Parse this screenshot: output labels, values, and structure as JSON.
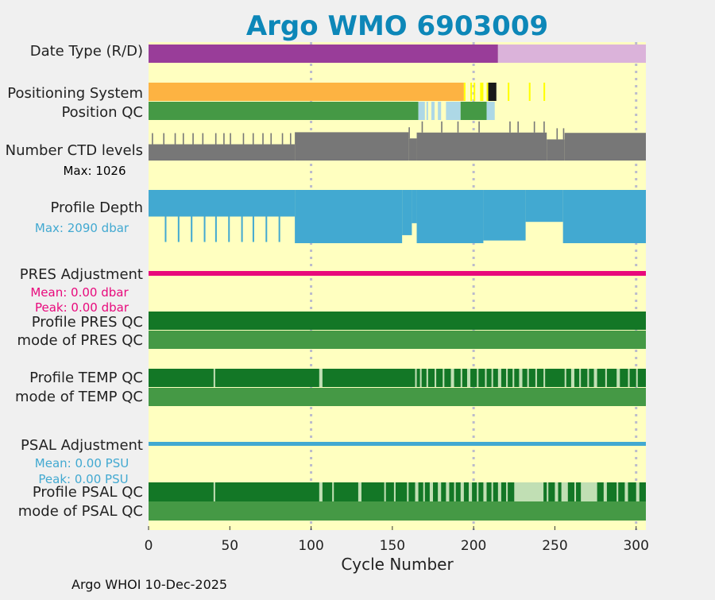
{
  "chart_data": {
    "type": "bar",
    "title": "Argo WMO 6903009",
    "xlabel": "Cycle Number",
    "xlim": [
      0,
      306
    ],
    "xticks": [
      "0",
      "50",
      "100",
      "150",
      "200",
      "250",
      "300"
    ],
    "xtick_values": [
      0,
      50,
      100,
      150,
      200,
      250,
      300
    ],
    "grid_lines_at": [
      100,
      200,
      300
    ],
    "footer": "Argo WHOI 10-Dec-2025",
    "last_cycle": 306,
    "rows": [
      {
        "label": "Date Type (R/D)",
        "segments": [
          {
            "from": 0,
            "to": 215,
            "code": "D"
          },
          {
            "from": 215,
            "to": 306,
            "code": "R"
          }
        ]
      },
      {
        "label": "Positioning System",
        "segments": [
          {
            "from": 0,
            "to": 194,
            "code": "GPS"
          },
          {
            "from": 194,
            "to": 195,
            "code": "Argos"
          },
          {
            "from": 198,
            "to": 199,
            "code": "Argos"
          },
          {
            "from": 200,
            "to": 201,
            "code": "Argos"
          },
          {
            "from": 204,
            "to": 206,
            "code": "Argos"
          },
          {
            "from": 208,
            "to": 209,
            "code": "Argos"
          },
          {
            "from": 209,
            "to": 214,
            "code": "unknown"
          },
          {
            "from": 221,
            "to": 222,
            "code": "Argos"
          },
          {
            "from": 234,
            "to": 235,
            "code": "Argos"
          },
          {
            "from": 243,
            "to": 244,
            "code": "Argos"
          }
        ]
      },
      {
        "label": "Position QC",
        "segments": [
          {
            "from": 0,
            "to": 166,
            "code": "good"
          },
          {
            "from": 166,
            "to": 170,
            "code": "changed"
          },
          {
            "from": 171,
            "to": 172,
            "code": "changed"
          },
          {
            "from": 174,
            "to": 176,
            "code": "changed"
          },
          {
            "from": 178,
            "to": 180,
            "code": "changed"
          },
          {
            "from": 183,
            "to": 192,
            "code": "changed"
          },
          {
            "from": 192,
            "to": 208,
            "code": "good"
          },
          {
            "from": 208,
            "to": 213,
            "code": "changed"
          }
        ]
      },
      {
        "label": "Number CTD levels",
        "stat": "Max: 1026",
        "max": 1026,
        "segments": [
          {
            "from": 0,
            "to": 90,
            "value": 500
          },
          {
            "from": 90,
            "to": 160,
            "value": 870
          },
          {
            "from": 160,
            "to": 165,
            "value": 680
          },
          {
            "from": 165,
            "to": 245,
            "value": 860
          },
          {
            "from": 245,
            "to": 256,
            "value": 650
          },
          {
            "from": 256,
            "to": 306,
            "value": 850
          }
        ],
        "spikes": [
          2,
          9,
          16,
          21,
          27,
          33,
          41,
          46,
          50,
          58,
          64,
          70,
          75,
          82,
          87,
          160,
          168,
          180,
          190,
          203,
          222,
          227,
          237,
          243,
          251,
          255
        ]
      },
      {
        "label": "Profile Depth",
        "stat": "Max: 2090 dbar",
        "max": 2090,
        "segments": [
          {
            "from": 0,
            "to": 90,
            "value": 1000
          },
          {
            "from": 90,
            "to": 156,
            "value": 2000
          },
          {
            "from": 156,
            "to": 162,
            "value": 1700
          },
          {
            "from": 162,
            "to": 165,
            "value": 1250
          },
          {
            "from": 165,
            "to": 206,
            "value": 2000
          },
          {
            "from": 206,
            "to": 232,
            "value": 1900
          },
          {
            "from": 232,
            "to": 255,
            "value": 1200
          },
          {
            "from": 255,
            "to": 306,
            "value": 2000
          }
        ],
        "spikes": [
          10,
          18,
          26,
          34,
          41,
          49,
          57,
          64,
          72,
          80
        ]
      },
      {
        "label": "PRES Adjustment",
        "stats": [
          "Mean: 0.00 dbar",
          "Peak: 0.00 dbar"
        ],
        "mean": 0.0,
        "peak": 0.0
      },
      {
        "label": "Profile PRES QC",
        "segments": [
          {
            "from": 0,
            "to": 306,
            "code": "A"
          }
        ]
      },
      {
        "label": "mode of PRES QC",
        "segments": [
          {
            "from": 0,
            "to": 306,
            "code": "1"
          }
        ]
      },
      {
        "label": "Profile TEMP QC",
        "segments": [
          {
            "from": 0,
            "to": 306,
            "code": "A"
          },
          {
            "from": 40,
            "to": 41,
            "code": "B"
          },
          {
            "from": 105,
            "to": 107,
            "code": "B"
          },
          {
            "from": 164,
            "to": 165,
            "code": "B"
          },
          {
            "from": 167,
            "to": 168,
            "code": "B"
          },
          {
            "from": 171,
            "to": 172,
            "code": "B"
          },
          {
            "from": 176,
            "to": 177,
            "code": "B"
          },
          {
            "from": 181,
            "to": 182,
            "code": "B"
          },
          {
            "from": 186,
            "to": 188,
            "code": "B"
          },
          {
            "from": 192,
            "to": 193,
            "code": "B"
          },
          {
            "from": 196,
            "to": 198,
            "code": "B"
          },
          {
            "from": 202,
            "to": 203,
            "code": "B"
          },
          {
            "from": 207,
            "to": 208,
            "code": "B"
          },
          {
            "from": 211,
            "to": 212,
            "code": "B"
          },
          {
            "from": 215,
            "to": 217,
            "code": "B"
          },
          {
            "from": 220,
            "to": 221,
            "code": "B"
          },
          {
            "from": 224,
            "to": 225,
            "code": "B"
          },
          {
            "from": 228,
            "to": 230,
            "code": "B"
          },
          {
            "from": 233,
            "to": 234,
            "code": "B"
          },
          {
            "from": 238,
            "to": 239,
            "code": "B"
          },
          {
            "from": 243,
            "to": 244,
            "code": "B"
          },
          {
            "from": 256,
            "to": 257,
            "code": "B"
          },
          {
            "from": 260,
            "to": 262,
            "code": "B"
          },
          {
            "from": 265,
            "to": 266,
            "code": "B"
          },
          {
            "from": 270,
            "to": 271,
            "code": "B"
          },
          {
            "from": 274,
            "to": 276,
            "code": "B"
          },
          {
            "from": 281,
            "to": 282,
            "code": "B"
          },
          {
            "from": 288,
            "to": 290,
            "code": "B"
          },
          {
            "from": 295,
            "to": 296,
            "code": "B"
          },
          {
            "from": 300,
            "to": 301,
            "code": "B"
          }
        ]
      },
      {
        "label": "mode of TEMP QC",
        "segments": [
          {
            "from": 0,
            "to": 306,
            "code": "1"
          }
        ]
      },
      {
        "label": "PSAL Adjustment",
        "stats": [
          "Mean: 0.00 PSU",
          "Peak: 0.00 PSU"
        ],
        "mean": 0.0,
        "peak": 0.0
      },
      {
        "label": "Profile PSAL QC",
        "segments": [
          {
            "from": 0,
            "to": 306,
            "code": "A"
          },
          {
            "from": 40,
            "to": 41,
            "code": "B"
          },
          {
            "from": 105,
            "to": 107,
            "code": "B"
          },
          {
            "from": 113,
            "to": 114,
            "code": "B"
          },
          {
            "from": 129,
            "to": 131,
            "code": "B"
          },
          {
            "from": 145,
            "to": 146,
            "code": "B"
          },
          {
            "from": 151,
            "to": 152,
            "code": "B"
          },
          {
            "from": 159,
            "to": 160,
            "code": "B"
          },
          {
            "from": 164,
            "to": 166,
            "code": "B"
          },
          {
            "from": 169,
            "to": 170,
            "code": "B"
          },
          {
            "from": 173,
            "to": 175,
            "code": "B"
          },
          {
            "from": 178,
            "to": 180,
            "code": "B"
          },
          {
            "from": 183,
            "to": 185,
            "code": "B"
          },
          {
            "from": 188,
            "to": 189,
            "code": "B"
          },
          {
            "from": 192,
            "to": 194,
            "code": "B"
          },
          {
            "from": 197,
            "to": 199,
            "code": "B"
          },
          {
            "from": 202,
            "to": 203,
            "code": "B"
          },
          {
            "from": 206,
            "to": 208,
            "code": "B"
          },
          {
            "from": 211,
            "to": 212,
            "code": "B"
          },
          {
            "from": 215,
            "to": 217,
            "code": "B"
          },
          {
            "from": 220,
            "to": 221,
            "code": "B"
          },
          {
            "from": 225,
            "to": 243,
            "code": "B"
          },
          {
            "from": 245,
            "to": 246,
            "code": "B"
          },
          {
            "from": 250,
            "to": 252,
            "code": "B"
          },
          {
            "from": 254,
            "to": 258,
            "code": "B"
          },
          {
            "from": 262,
            "to": 263,
            "code": "B"
          },
          {
            "from": 266,
            "to": 276,
            "code": "B"
          },
          {
            "from": 280,
            "to": 282,
            "code": "B"
          },
          {
            "from": 288,
            "to": 289,
            "code": "B"
          },
          {
            "from": 293,
            "to": 295,
            "code": "B"
          },
          {
            "from": 300,
            "to": 302,
            "code": "B"
          }
        ]
      },
      {
        "label": "mode of PSAL QC",
        "segments": [
          {
            "from": 0,
            "to": 306,
            "code": "1"
          }
        ]
      }
    ]
  },
  "colors": {
    "background": "#f0f0f0",
    "plot_background": "#ffffc0",
    "title": "#0d87b8",
    "date_D": "#993d99",
    "date_R": "#dbb3da",
    "pos_GPS": "#fdb342",
    "pos_Argos": "#ffff00",
    "pos_unknown": "#1a1a1a",
    "posqc_good": "#459945",
    "posqc_changed": "#add8e6",
    "ctd": "#777777",
    "depth": "#42a9d1",
    "pres_adjustment": "#e8097c",
    "psal_adjustment": "#42a9d1",
    "profile_qc_A": "#137726",
    "profile_qc_B": "#c1dfb4",
    "mode_qc_1": "#459945",
    "grid": "#bbbbcc",
    "axis_text": "#222222"
  }
}
